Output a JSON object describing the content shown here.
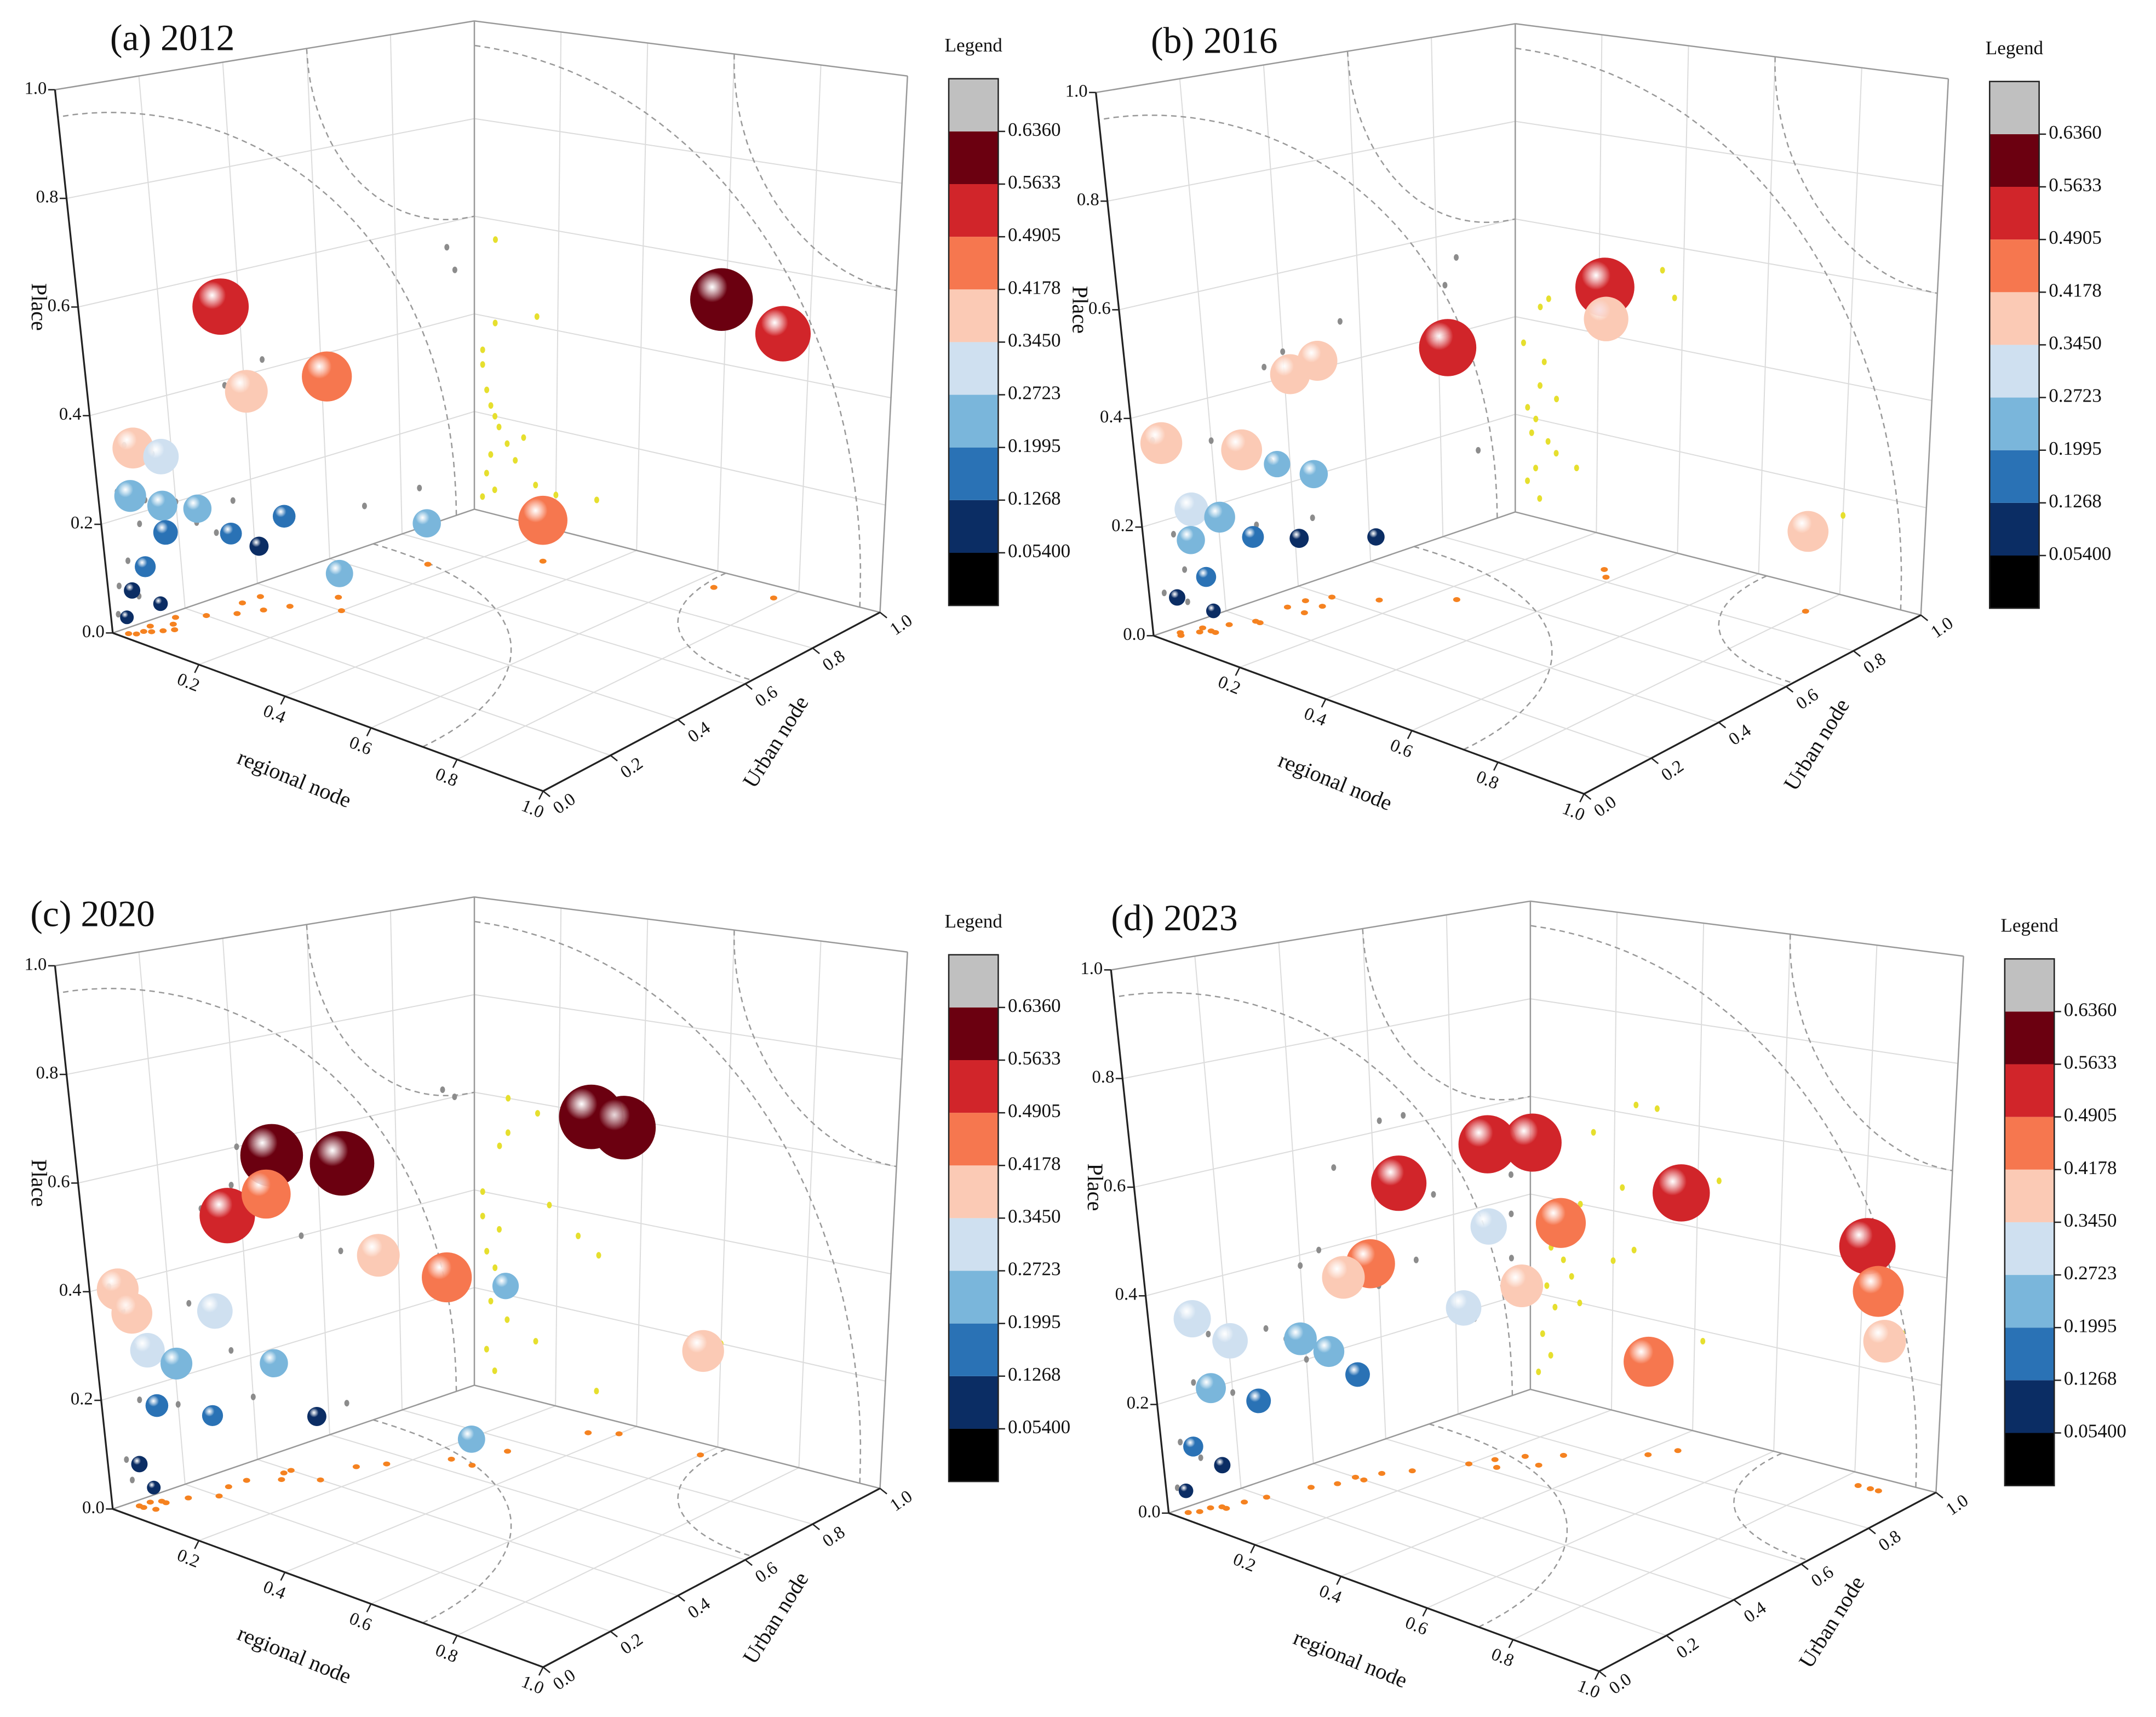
{
  "chart_data": [
    {
      "type": "scatter3d",
      "title": "(a) 2012",
      "xlabel": "regional node",
      "ylabel": "Urban node",
      "zlabel": "Place",
      "xlim": [
        0,
        1
      ],
      "ylim": [
        0,
        1
      ],
      "zlim": [
        0,
        1
      ],
      "xticks": [
        0.2,
        0.4,
        0.6,
        0.8,
        {
          "value": 1,
          "label": "1.0"
        }
      ],
      "yticks": [
        {
          "value": 0,
          "label": "0.0"
        },
        0.2,
        0.4,
        0.6,
        0.8,
        {
          "value": 1,
          "label": "1.0"
        }
      ],
      "zticks": [
        {
          "value": 0,
          "label": "0.0"
        },
        0.2,
        0.4,
        0.6,
        0.8,
        {
          "value": 1,
          "label": "1.0"
        }
      ],
      "legend": {
        "title": "Legend",
        "colors": [
          "#000000",
          "#0b2d64",
          "#2a72b5",
          "#7ab6db",
          "#cfe0f0",
          "#fbcab5",
          "#f6774f",
          "#d1252a",
          "#6b0010",
          "#c0c0c0"
        ],
        "breaks": [
          {
            "value": 0.054,
            "label": "0.05400"
          },
          0.1268,
          0.1995,
          0.2723,
          {
            "value": 0.345,
            "label": "0.3450"
          },
          0.4178,
          0.4905,
          0.5633,
          {
            "value": 0.636,
            "label": "0.6360"
          }
        ]
      },
      "projection_colors": {
        "floor": "#f58220",
        "back": "#e6df2e",
        "side": "#8c8c8c"
      },
      "points": {
        "x": [
          0.65,
          0.78,
          0.05,
          0.05,
          0.15,
          0.3,
          0.15,
          0.2,
          0.02,
          0.02,
          0.03,
          0.04,
          0.05,
          0.06,
          0.08,
          0.04,
          0.1,
          0.03,
          0.05,
          0.12,
          0.02
        ],
        "y": [
          0.93,
          0.95,
          0.3,
          0.35,
          0.45,
          0.85,
          0.7,
          0.4,
          0.08,
          0.15,
          0.05,
          0.12,
          0.2,
          0.1,
          0.25,
          0.06,
          0.3,
          0.03,
          0.08,
          0.35,
          0.02
        ],
        "z": [
          0.55,
          0.5,
          0.56,
          0.39,
          0.42,
          0.08,
          0.08,
          0.07,
          0.33,
          0.3,
          0.25,
          0.22,
          0.2,
          0.18,
          0.15,
          0.12,
          0.12,
          0.08,
          0.05,
          0.17,
          0.03
        ],
        "values": [
          0.6,
          0.52,
          0.53,
          0.38,
          0.46,
          0.45,
          0.22,
          0.21,
          0.36,
          0.3,
          0.26,
          0.24,
          0.22,
          0.18,
          0.15,
          0.14,
          0.12,
          0.09,
          0.07,
          0.16,
          0.06
        ]
      }
    },
    {
      "type": "scatter3d",
      "title": "(b) 2016",
      "xlabel": "regional node",
      "ylabel": "Urban node",
      "zlabel": "Place",
      "xlim": [
        0,
        1
      ],
      "ylim": [
        0,
        1
      ],
      "zlim": [
        0,
        1
      ],
      "xticks": [
        0.2,
        0.4,
        0.6,
        0.8,
        {
          "value": 1,
          "label": "1.0"
        }
      ],
      "yticks": [
        {
          "value": 0,
          "label": "0.0"
        },
        0.2,
        0.4,
        0.6,
        0.8,
        {
          "value": 1,
          "label": "1.0"
        }
      ],
      "zticks": [
        {
          "value": 0,
          "label": "0.0"
        },
        0.2,
        0.4,
        0.6,
        0.8,
        {
          "value": 1,
          "label": "1.0"
        }
      ],
      "legend": {
        "title": "Legend",
        "colors": [
          "#000000",
          "#0b2d64",
          "#2a72b5",
          "#7ab6db",
          "#cfe0f0",
          "#fbcab5",
          "#f6774f",
          "#d1252a",
          "#6b0010",
          "#c0c0c0"
        ],
        "breaks": [
          {
            "value": 0.054,
            "label": "0.05400"
          },
          0.1268,
          0.1995,
          0.2723,
          {
            "value": 0.345,
            "label": "0.3450"
          },
          0.4178,
          0.4905,
          0.5633,
          {
            "value": 0.636,
            "label": "0.6360"
          }
        ]
      },
      "projection_colors": {
        "floor": "#f58220",
        "back": "#e6df2e",
        "side": "#8c8c8c"
      },
      "points": {
        "x": [
          0.35,
          0.38,
          0.25,
          0.08,
          0.06,
          0.02,
          0.07,
          0.8,
          0.1,
          0.06,
          0.03,
          0.05,
          0.04,
          0.08,
          0.1,
          0.05,
          0.03,
          0.06,
          0.15
        ],
        "y": [
          0.85,
          0.82,
          0.55,
          0.4,
          0.35,
          0.05,
          0.2,
          0.9,
          0.35,
          0.3,
          0.1,
          0.15,
          0.08,
          0.2,
          0.3,
          0.1,
          0.04,
          0.1,
          0.45
        ],
        "z": [
          0.55,
          0.5,
          0.48,
          0.45,
          0.43,
          0.35,
          0.32,
          0.15,
          0.25,
          0.27,
          0.22,
          0.2,
          0.17,
          0.16,
          0.14,
          0.1,
          0.07,
          0.04,
          0.12
        ],
        "values": [
          0.56,
          0.4,
          0.54,
          0.35,
          0.35,
          0.37,
          0.36,
          0.36,
          0.22,
          0.2,
          0.28,
          0.25,
          0.22,
          0.15,
          0.12,
          0.13,
          0.09,
          0.07,
          0.1
        ]
      }
    },
    {
      "type": "scatter3d",
      "title": "(c) 2020",
      "xlabel": "regional node",
      "ylabel": "Urban node",
      "zlabel": "Place",
      "xlim": [
        0,
        1
      ],
      "ylim": [
        0,
        1
      ],
      "zlim": [
        0,
        1
      ],
      "xticks": [
        0.2,
        0.4,
        0.6,
        0.8,
        {
          "value": 1,
          "label": "1.0"
        }
      ],
      "yticks": [
        {
          "value": 0,
          "label": "0.0"
        },
        0.2,
        0.4,
        0.6,
        0.8,
        {
          "value": 1,
          "label": "1.0"
        }
      ],
      "zticks": [
        {
          "value": 0,
          "label": "0.0"
        },
        0.2,
        0.4,
        0.6,
        0.8,
        {
          "value": 1,
          "label": "1.0"
        }
      ],
      "legend": {
        "title": "Legend",
        "colors": [
          "#000000",
          "#0b2d64",
          "#2a72b5",
          "#7ab6db",
          "#cfe0f0",
          "#fbcab5",
          "#f6774f",
          "#d1252a",
          "#6b0010",
          "#c0c0c0"
        ],
        "breaks": [
          {
            "value": 0.054,
            "label": "0.05400"
          },
          0.1268,
          0.1995,
          0.2723,
          {
            "value": 0.345,
            "label": "0.3450"
          },
          0.4178,
          0.4905,
          0.5633,
          {
            "value": 0.636,
            "label": "0.6360"
          }
        ]
      },
      "projection_colors": {
        "floor": "#f58220",
        "back": "#e6df2e",
        "side": "#8c8c8c"
      },
      "points": {
        "x": [
          0.35,
          0.4,
          0.08,
          0.15,
          0.06,
          0.08,
          0.18,
          0.25,
          0.02,
          0.02,
          0.06,
          0.6,
          0.03,
          0.05,
          0.3,
          0.1,
          0.3,
          0.04,
          0.08,
          0.15,
          0.03,
          0.05
        ],
        "y": [
          0.92,
          0.95,
          0.4,
          0.5,
          0.3,
          0.38,
          0.55,
          0.65,
          0.05,
          0.08,
          0.25,
          0.95,
          0.1,
          0.15,
          0.75,
          0.35,
          0.65,
          0.1,
          0.2,
          0.4,
          0.05,
          0.06
        ],
        "z": [
          0.62,
          0.6,
          0.6,
          0.58,
          0.5,
          0.53,
          0.4,
          0.35,
          0.4,
          0.35,
          0.33,
          0.2,
          0.28,
          0.25,
          0.32,
          0.22,
          0.05,
          0.18,
          0.15,
          0.12,
          0.08,
          0.04
        ],
        "values": [
          0.62,
          0.61,
          0.6,
          0.62,
          0.52,
          0.45,
          0.38,
          0.46,
          0.37,
          0.36,
          0.3,
          0.37,
          0.29,
          0.26,
          0.2,
          0.22,
          0.21,
          0.16,
          0.14,
          0.12,
          0.09,
          0.06
        ]
      }
    },
    {
      "type": "scatter3d",
      "title": "(d) 2023",
      "xlabel": "regional node",
      "ylabel": "Urban node",
      "zlabel": "Place",
      "xlim": [
        0,
        1
      ],
      "ylim": [
        0,
        1
      ],
      "zlim": [
        0,
        1
      ],
      "xticks": [
        0.2,
        0.4,
        0.6,
        0.8,
        {
          "value": 1,
          "label": "1.0"
        }
      ],
      "yticks": [
        {
          "value": 0,
          "label": "0.0"
        },
        0.2,
        0.4,
        0.6,
        0.8,
        {
          "value": 1,
          "label": "1.0"
        }
      ],
      "zticks": [
        {
          "value": 0,
          "label": "0.0"
        },
        0.2,
        0.4,
        0.6,
        0.8,
        {
          "value": 1,
          "label": "1.0"
        }
      ],
      "legend": {
        "title": "Legend",
        "colors": [
          "#000000",
          "#0b2d64",
          "#2a72b5",
          "#7ab6db",
          "#cfe0f0",
          "#fbcab5",
          "#f6774f",
          "#d1252a",
          "#6b0010",
          "#c0c0c0"
        ],
        "breaks": [
          {
            "value": 0.054,
            "label": "0.05400"
          },
          0.1268,
          0.1995,
          0.2723,
          {
            "value": 0.345,
            "label": "0.3450"
          },
          0.4178,
          0.4905,
          0.5633,
          {
            "value": 0.636,
            "label": "0.6360"
          }
        ]
      },
      "projection_colors": {
        "floor": "#f58220",
        "back": "#e6df2e",
        "side": "#8c8c8c"
      },
      "points": {
        "x": [
          0.25,
          0.3,
          0.15,
          0.45,
          0.85,
          0.88,
          0.9,
          0.42,
          0.3,
          0.12,
          0.1,
          0.25,
          0.22,
          0.2,
          0.03,
          0.05,
          0.08,
          0.1,
          0.04,
          0.06,
          0.12,
          0.03,
          0.05,
          0.02
        ],
        "y": [
          0.62,
          0.68,
          0.5,
          0.9,
          0.95,
          0.95,
          0.95,
          0.85,
          0.75,
          0.45,
          0.4,
          0.7,
          0.65,
          0.6,
          0.08,
          0.15,
          0.3,
          0.35,
          0.1,
          0.2,
          0.4,
          0.05,
          0.1,
          0.03
        ],
        "z": [
          0.62,
          0.62,
          0.55,
          0.5,
          0.45,
          0.37,
          0.28,
          0.18,
          0.45,
          0.4,
          0.38,
          0.33,
          0.45,
          0.3,
          0.35,
          0.3,
          0.28,
          0.25,
          0.22,
          0.18,
          0.2,
          0.12,
          0.08,
          0.04
        ],
        "values": [
          0.55,
          0.55,
          0.52,
          0.54,
          0.53,
          0.47,
          0.38,
          0.46,
          0.46,
          0.45,
          0.38,
          0.38,
          0.31,
          0.3,
          0.32,
          0.3,
          0.27,
          0.25,
          0.24,
          0.18,
          0.18,
          0.13,
          0.09,
          0.07
        ]
      }
    }
  ]
}
